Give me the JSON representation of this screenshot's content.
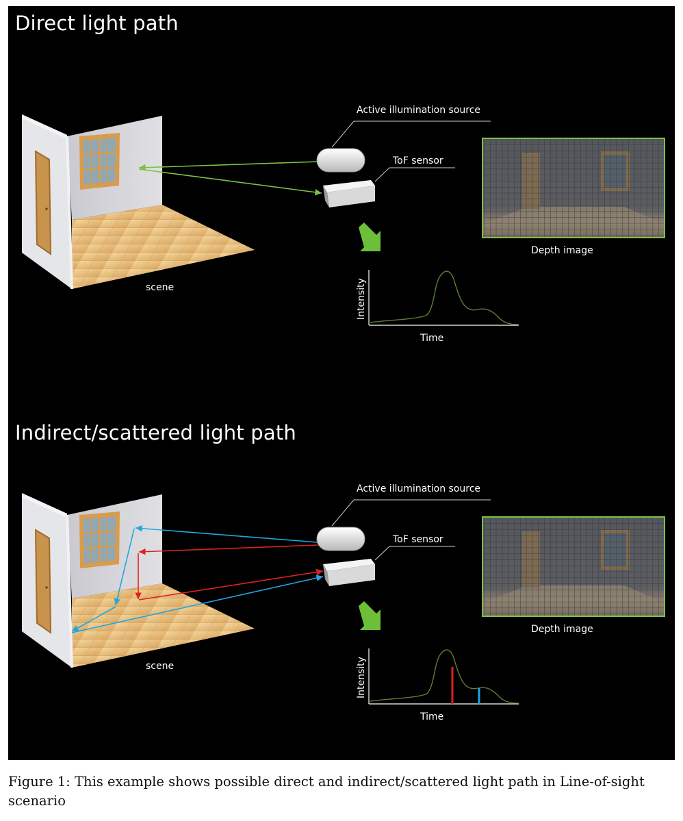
{
  "panels": [
    {
      "title": "Direct light path",
      "scene_label": "scene",
      "illumination_label": "Active illumination source",
      "sensor_label": "ToF sensor",
      "depth_label": "Depth image",
      "plot_ylabel": "Intensity",
      "plot_xlabel": "Time"
    },
    {
      "title": "Indirect/scattered light path",
      "scene_label": "scene",
      "illumination_label": "Active illumination source",
      "sensor_label": "ToF sensor",
      "depth_label": "Depth image",
      "plot_ylabel": "Intensity",
      "plot_xlabel": "Time"
    }
  ],
  "caption": "Figure 1: This example shows possible direct and indirect/scattered light path in Line-of-sight scenario",
  "colors": {
    "background": "#000000",
    "direct_ray": "#7dc242",
    "scattered_ray_red": "#e02020",
    "scattered_ray_blue": "#1ea7e1",
    "arrow": "#6dbf3a",
    "depth_frame": "#7dc242"
  }
}
